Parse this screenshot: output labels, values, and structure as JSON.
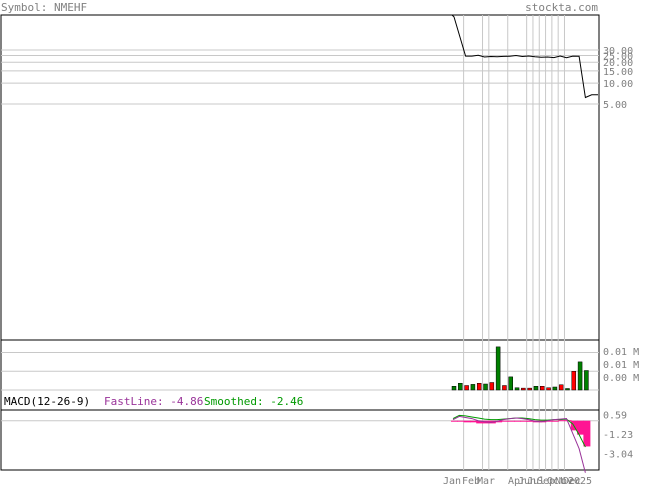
{
  "header": {
    "symbol_label": "Symbol: NMEHF",
    "site_label": "stockta.com"
  },
  "colors": {
    "frame": "#000000",
    "grid": "#c8c8c8",
    "axis_text": "#808080",
    "price_line": "#000000",
    "volume_up": "#008000",
    "volume_down": "#ff0000",
    "macd_fast": "#993399",
    "macd_smoothed": "#009900",
    "histogram": "#ff1493"
  },
  "chart_data": [
    {
      "type": "line",
      "name": "price",
      "ylabel_ticks": [
        "30.00",
        "25.00",
        "20.00",
        "15.00",
        "10.00",
        "5.00"
      ],
      "ytick_values": [
        30,
        25,
        20,
        15,
        10,
        5
      ],
      "y_scale": "log",
      "x_month_labels": [
        "Jan",
        "Feb",
        "Mar",
        "Apr",
        "Jun",
        "Jul",
        "Sep",
        "Oct",
        "Nov",
        "Dec",
        "2025"
      ],
      "points": [
        {
          "i": 0,
          "v": 300
        },
        {
          "i": 1,
          "v": 90
        },
        {
          "i": 2,
          "v": 24.5
        },
        {
          "i": 3,
          "v": 24.5
        },
        {
          "i": 4,
          "v": 25.2
        },
        {
          "i": 5,
          "v": 23.8
        },
        {
          "i": 6,
          "v": 24.2
        },
        {
          "i": 7,
          "v": 24.0
        },
        {
          "i": 8,
          "v": 24.3
        },
        {
          "i": 9,
          "v": 24.4
        },
        {
          "i": 10,
          "v": 25.0
        },
        {
          "i": 11,
          "v": 24.2
        },
        {
          "i": 12,
          "v": 24.6
        },
        {
          "i": 13,
          "v": 24.0
        },
        {
          "i": 14,
          "v": 23.6
        },
        {
          "i": 15,
          "v": 23.8
        },
        {
          "i": 16,
          "v": 23.3
        },
        {
          "i": 17,
          "v": 24.6
        },
        {
          "i": 18,
          "v": 23.2
        },
        {
          "i": 19,
          "v": 24.5
        },
        {
          "i": 20,
          "v": 24.4
        },
        {
          "i": 21,
          "v": 6.2
        },
        {
          "i": 22,
          "v": 6.8
        },
        {
          "i": 23,
          "v": 6.8
        }
      ]
    },
    {
      "type": "bar",
      "name": "volume",
      "ylabel_ticks": [
        "0.01 M",
        "0.01 M",
        "0.00 M"
      ],
      "values": [
        0.001,
        0.0018,
        0.0012,
        0.0015,
        0.0018,
        0.0016,
        0.002,
        0.0115,
        0.0012,
        0.0035,
        0.0006,
        0.0005,
        0.0005,
        0.001,
        0.001,
        0.0006,
        0.0008,
        0.0014,
        0.0004,
        0.005,
        0.0075,
        0.0052
      ],
      "up": [
        true,
        true,
        false,
        true,
        false,
        true,
        false,
        true,
        false,
        true,
        true,
        false,
        false,
        true,
        false,
        false,
        true,
        false,
        true,
        false,
        true,
        true
      ],
      "ylim": [
        0,
        0.012
      ]
    },
    {
      "type": "line",
      "name": "macd",
      "legend": {
        "title": "MACD(12-26-9)",
        "fast_label": "FastLine: -4.86",
        "smoothed_label": "Smoothed: -2.46"
      },
      "ylabel_ticks": [
        "0.59",
        "-1.23",
        "-3.04"
      ],
      "ytick_values": [
        0.59,
        -1.23,
        -3.04
      ],
      "ylim": [
        -4.6,
        1.0
      ],
      "fast": [
        0.1,
        0.4,
        0.3,
        0.2,
        0.0,
        -0.1,
        -0.15,
        -0.05,
        0.1,
        0.2,
        0.25,
        0.2,
        0.1,
        -0.05,
        -0.1,
        0.0,
        0.1,
        0.15,
        0.2,
        -1.2,
        -2.6,
        -4.86
      ],
      "smoothed": [
        0.2,
        0.5,
        0.45,
        0.35,
        0.25,
        0.15,
        0.1,
        0.1,
        0.15,
        0.2,
        0.25,
        0.25,
        0.2,
        0.1,
        0.05,
        0.05,
        0.1,
        0.1,
        0.15,
        -0.3,
        -1.3,
        -2.46
      ],
      "histogram": [
        0,
        0,
        -0.15,
        -0.15,
        -0.25,
        -0.25,
        -0.25,
        -0.15,
        -0.05,
        0,
        0,
        -0.05,
        -0.1,
        -0.15,
        -0.15,
        -0.05,
        0,
        0.05,
        0.05,
        -0.9,
        -1.3,
        -2.4
      ]
    }
  ]
}
